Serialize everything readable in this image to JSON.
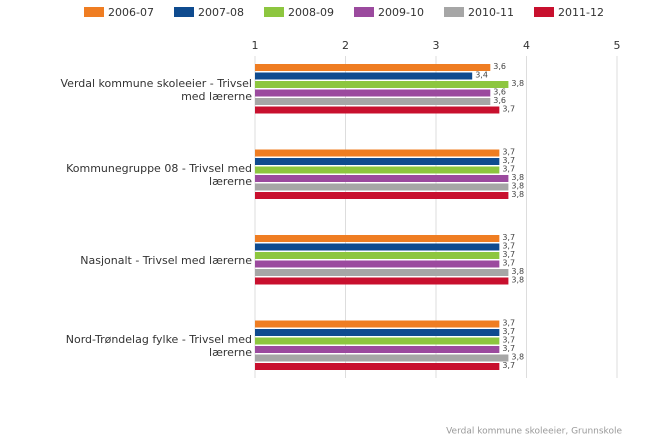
{
  "chart_data": {
    "type": "hbar",
    "categories": [
      "Verdal kommune skoleeier - Trivsel med lærerne",
      "Kommunegruppe 08 - Trivsel med lærerne",
      "Nasjonalt - Trivsel med lærerne",
      "Nord-Trøndelag fylke - Trivsel med lærerne"
    ],
    "series": [
      {
        "name": "2006-07",
        "color": "#ef7d22",
        "values": [
          3.6,
          3.7,
          3.7,
          3.7
        ],
        "value_labels": [
          "3,6",
          "3,7",
          "3,7",
          "3,7"
        ]
      },
      {
        "name": "2007-08",
        "color": "#0f4b8f",
        "values": [
          3.4,
          3.7,
          3.7,
          3.7
        ],
        "value_labels": [
          "3,4",
          "3,7",
          "3,7",
          "3,7"
        ]
      },
      {
        "name": "2008-09",
        "color": "#8dc63f",
        "values": [
          3.8,
          3.7,
          3.7,
          3.7
        ],
        "value_labels": [
          "3,8",
          "3,7",
          "3,7",
          "3,7"
        ]
      },
      {
        "name": "2009-10",
        "color": "#9b4a9e",
        "values": [
          3.6,
          3.8,
          3.7,
          3.7
        ],
        "value_labels": [
          "3,6",
          "3,8",
          "3,7",
          "3,7"
        ]
      },
      {
        "name": "2010-11",
        "color": "#a6a6a6",
        "values": [
          3.6,
          3.8,
          3.8,
          3.8
        ],
        "value_labels": [
          "3,6",
          "3,8",
          "3,8",
          "3,8"
        ]
      },
      {
        "name": "2011-12",
        "color": "#c8102e",
        "values": [
          3.7,
          3.8,
          3.8,
          3.7
        ],
        "value_labels": [
          "3,7",
          "3,8",
          "3,8",
          "3,7"
        ]
      }
    ],
    "xlim": [
      1,
      5
    ],
    "xticks": [
      1,
      2,
      3,
      4,
      5
    ],
    "grid": true,
    "source": "Verdal kommune skoleeier, Grunnskole"
  }
}
